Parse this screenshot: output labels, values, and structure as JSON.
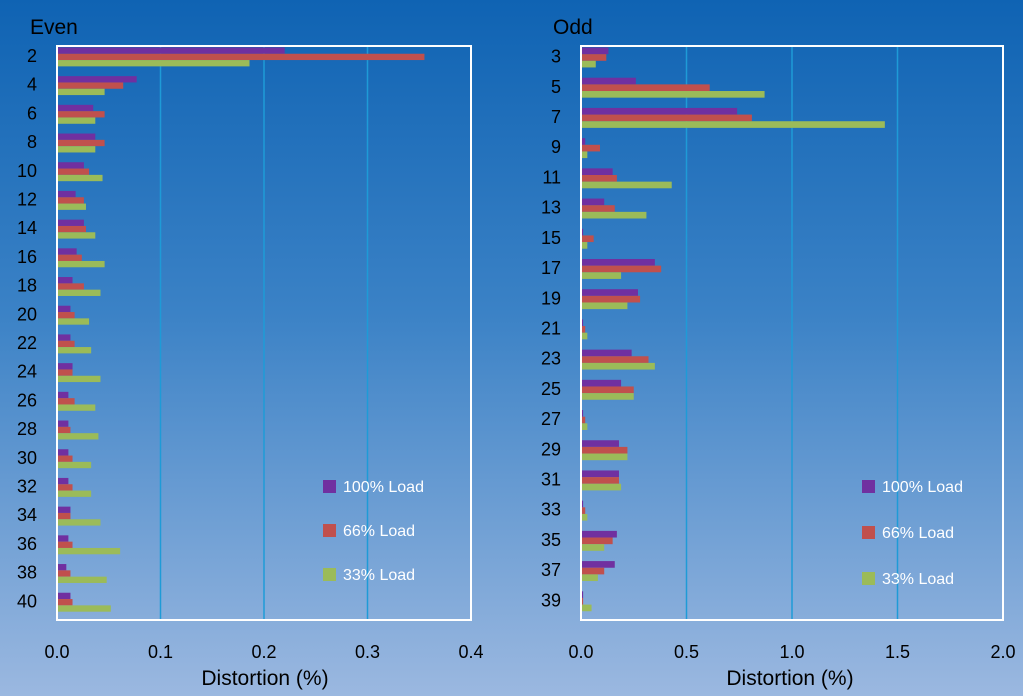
{
  "chart_data": [
    {
      "type": "bar",
      "orientation": "horizontal",
      "title": "Even",
      "xlabel": "Distortion (%)",
      "ylabel": "",
      "xlim": [
        0,
        0.4
      ],
      "xticks": [
        "0.0",
        "0.1",
        "0.2",
        "0.3",
        "0.4"
      ],
      "grid": "vertical",
      "legend": "bottom-right",
      "categories": [
        "2",
        "4",
        "6",
        "8",
        "10",
        "12",
        "14",
        "16",
        "18",
        "20",
        "22",
        "24",
        "26",
        "28",
        "30",
        "32",
        "34",
        "36",
        "38",
        "40"
      ],
      "series": [
        {
          "name": "100% Load",
          "color": "#7030a0",
          "values": [
            0.22,
            0.077,
            0.035,
            0.037,
            0.026,
            0.018,
            0.026,
            0.019,
            0.015,
            0.013,
            0.013,
            0.015,
            0.011,
            0.011,
            0.011,
            0.011,
            0.013,
            0.011,
            0.009,
            0.013
          ]
        },
        {
          "name": "66% Load",
          "color": "#c0504d",
          "values": [
            0.355,
            0.064,
            0.046,
            0.046,
            0.031,
            0.026,
            0.028,
            0.024,
            0.026,
            0.017,
            0.017,
            0.015,
            0.017,
            0.013,
            0.015,
            0.015,
            0.013,
            0.015,
            0.013,
            0.015
          ]
        },
        {
          "name": "33% Load",
          "color": "#9bbb59",
          "values": [
            0.186,
            0.046,
            0.037,
            0.037,
            0.044,
            0.028,
            0.037,
            0.046,
            0.042,
            0.031,
            0.033,
            0.042,
            0.037,
            0.04,
            0.033,
            0.033,
            0.042,
            0.061,
            0.048,
            0.052
          ]
        }
      ]
    },
    {
      "type": "bar",
      "orientation": "horizontal",
      "title": "Odd",
      "xlabel": "Distortion (%)",
      "ylabel": "",
      "xlim": [
        0,
        2.0
      ],
      "xticks": [
        "0.0",
        "0.5",
        "1.0",
        "1.5",
        "2.0"
      ],
      "grid": "vertical",
      "legend": "bottom-right",
      "categories": [
        "3",
        "5",
        "7",
        "9",
        "11",
        "13",
        "15",
        "17",
        "19",
        "21",
        "23",
        "25",
        "27",
        "29",
        "31",
        "33",
        "35",
        "37",
        "39"
      ],
      "series": [
        {
          "name": "100% Load",
          "color": "#7030a0",
          "values": [
            0.13,
            0.26,
            0.74,
            0.02,
            0.15,
            0.11,
            0.01,
            0.35,
            0.27,
            0.01,
            0.24,
            0.19,
            0.01,
            0.18,
            0.18,
            0.01,
            0.17,
            0.16,
            0.01
          ]
        },
        {
          "name": "66% Load",
          "color": "#c0504d",
          "values": [
            0.12,
            0.61,
            0.81,
            0.09,
            0.17,
            0.16,
            0.06,
            0.38,
            0.28,
            0.02,
            0.32,
            0.25,
            0.02,
            0.22,
            0.18,
            0.02,
            0.15,
            0.11,
            0.01
          ]
        },
        {
          "name": "33% Load",
          "color": "#9bbb59",
          "values": [
            0.07,
            0.87,
            1.44,
            0.03,
            0.43,
            0.31,
            0.03,
            0.19,
            0.22,
            0.03,
            0.35,
            0.25,
            0.03,
            0.22,
            0.19,
            0.03,
            0.11,
            0.08,
            0.05
          ]
        }
      ]
    }
  ]
}
